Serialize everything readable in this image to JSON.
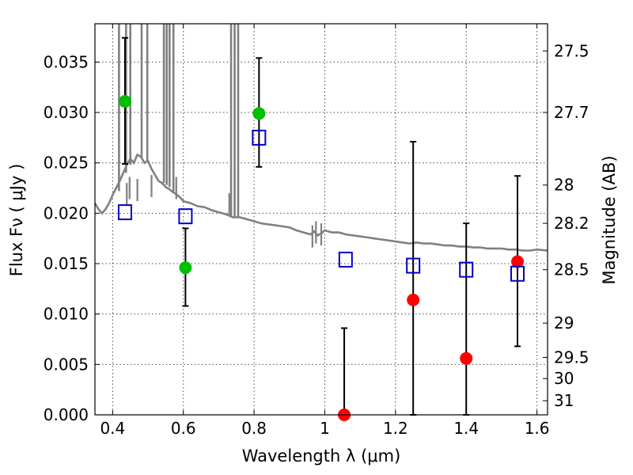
{
  "chart_data": {
    "type": "scatter",
    "xlabel": "Wavelength  λ (μm)",
    "ylabel": "Flux  Fν  ( μJy )",
    "ylabel_right": "Magnitude (AB)",
    "xlim": [
      0.35,
      1.63
    ],
    "ylim": [
      0.0,
      0.0388
    ],
    "grid": true,
    "x_ticks": [
      0.4,
      0.6,
      0.8,
      1.0,
      1.2,
      1.4,
      1.6
    ],
    "x_tick_labels": [
      "0.4",
      "0.6",
      "0.8",
      "1",
      "1.2",
      "1.4",
      "1.6"
    ],
    "y_ticks": [
      0.0,
      0.005,
      0.01,
      0.015,
      0.02,
      0.025,
      0.03,
      0.035
    ],
    "y_tick_labels": [
      "0.000",
      "0.005",
      "0.010",
      "0.015",
      "0.020",
      "0.025",
      "0.030",
      "0.035"
    ],
    "right_ticks": [
      {
        "label": "27.5",
        "flux": 0.0361
      },
      {
        "label": "27.7",
        "flux": 0.03
      },
      {
        "label": "28",
        "flux": 0.0228
      },
      {
        "label": "28.2",
        "flux": 0.019
      },
      {
        "label": "28.5",
        "flux": 0.0144
      },
      {
        "label": "29",
        "flux": 0.0091
      },
      {
        "label": "29.5",
        "flux": 0.0057
      },
      {
        "label": "30",
        "flux": 0.0036
      },
      {
        "label": "31",
        "flux": 0.0014
      }
    ],
    "series": [
      {
        "marker": "circle-filled",
        "color": "#00bf00",
        "points": [
          {
            "x": 0.435,
            "y": 0.0311,
            "err_low": 0.0249,
            "err_high": 0.0374
          },
          {
            "x": 0.606,
            "y": 0.0146,
            "err_low": 0.0108,
            "err_high": 0.0185
          },
          {
            "x": 0.814,
            "y": 0.0299,
            "err_low": 0.0246,
            "err_high": 0.0354
          }
        ]
      },
      {
        "marker": "circle-filled",
        "color": "#ff0000",
        "points": [
          {
            "x": 1.055,
            "y": 0.0,
            "err_low": 0.0,
            "err_high": 0.0086
          },
          {
            "x": 1.25,
            "y": 0.0114,
            "err_low": 0.0,
            "err_high": 0.0271
          },
          {
            "x": 1.4,
            "y": 0.0056,
            "err_low": 0.0,
            "err_high": 0.019
          },
          {
            "x": 1.545,
            "y": 0.0152,
            "err_low": 0.0068,
            "err_high": 0.0237
          }
        ]
      },
      {
        "marker": "square-open",
        "color": "#0000cc",
        "points": [
          {
            "x": 0.435,
            "y": 0.0201
          },
          {
            "x": 0.606,
            "y": 0.0197
          },
          {
            "x": 0.814,
            "y": 0.0275
          },
          {
            "x": 1.059,
            "y": 0.0154
          },
          {
            "x": 1.25,
            "y": 0.0148
          },
          {
            "x": 1.4,
            "y": 0.0144
          },
          {
            "x": 1.545,
            "y": 0.014
          }
        ]
      },
      {
        "marker": "line",
        "color": "#808080",
        "points": [
          [
            0.35,
            0.021
          ],
          [
            0.36,
            0.0204
          ],
          [
            0.37,
            0.02
          ],
          [
            0.38,
            0.0204
          ],
          [
            0.39,
            0.021
          ],
          [
            0.4,
            0.0218
          ],
          [
            0.41,
            0.0225
          ],
          [
            0.42,
            0.0232
          ],
          [
            0.43,
            0.024
          ],
          [
            0.44,
            0.0248
          ],
          [
            0.45,
            0.0254
          ],
          [
            0.46,
            0.025
          ],
          [
            0.47,
            0.0258
          ],
          [
            0.48,
            0.0256
          ],
          [
            0.49,
            0.025
          ],
          [
            0.5,
            0.0252
          ],
          [
            0.51,
            0.0244
          ],
          [
            0.52,
            0.0238
          ],
          [
            0.53,
            0.0232
          ],
          [
            0.54,
            0.023
          ],
          [
            0.55,
            0.0226
          ],
          [
            0.56,
            0.0224
          ],
          [
            0.57,
            0.0221
          ],
          [
            0.58,
            0.0219
          ],
          [
            0.59,
            0.0216
          ],
          [
            0.6,
            0.0212
          ],
          [
            0.62,
            0.021
          ],
          [
            0.64,
            0.0207
          ],
          [
            0.66,
            0.0206
          ],
          [
            0.68,
            0.0203
          ],
          [
            0.7,
            0.0201
          ],
          [
            0.72,
            0.0199
          ],
          [
            0.74,
            0.0196
          ],
          [
            0.76,
            0.0196
          ],
          [
            0.78,
            0.0194
          ],
          [
            0.8,
            0.0192
          ],
          [
            0.82,
            0.019
          ],
          [
            0.84,
            0.0189
          ],
          [
            0.86,
            0.0188
          ],
          [
            0.88,
            0.0187
          ],
          [
            0.9,
            0.0186
          ],
          [
            0.92,
            0.0183
          ],
          [
            0.94,
            0.0181
          ],
          [
            0.96,
            0.0179
          ],
          [
            0.97,
            0.0182
          ],
          [
            0.98,
            0.0178
          ],
          [
            0.99,
            0.018
          ],
          [
            1.0,
            0.0183
          ],
          [
            1.02,
            0.0181
          ],
          [
            1.04,
            0.0181
          ],
          [
            1.06,
            0.0179
          ],
          [
            1.08,
            0.0178
          ],
          [
            1.1,
            0.0177
          ],
          [
            1.12,
            0.0176
          ],
          [
            1.14,
            0.0175
          ],
          [
            1.16,
            0.0174
          ],
          [
            1.18,
            0.0173
          ],
          [
            1.2,
            0.0172
          ],
          [
            1.22,
            0.0171
          ],
          [
            1.24,
            0.017
          ],
          [
            1.26,
            0.0171
          ],
          [
            1.28,
            0.017
          ],
          [
            1.3,
            0.017
          ],
          [
            1.32,
            0.0169
          ],
          [
            1.34,
            0.0168
          ],
          [
            1.36,
            0.0168
          ],
          [
            1.38,
            0.0167
          ],
          [
            1.4,
            0.0167
          ],
          [
            1.42,
            0.0166
          ],
          [
            1.44,
            0.0166
          ],
          [
            1.46,
            0.0165
          ],
          [
            1.48,
            0.0165
          ],
          [
            1.5,
            0.0165
          ],
          [
            1.52,
            0.0164
          ],
          [
            1.54,
            0.0164
          ],
          [
            1.56,
            0.0163
          ],
          [
            1.58,
            0.0163
          ],
          [
            1.6,
            0.0164
          ],
          [
            1.63,
            0.0163
          ]
        ],
        "spikes": [
          {
            "x": 0.418,
            "y_top": 0.0388,
            "y_base": 0.0222
          },
          {
            "x": 0.438,
            "y_top": 0.0388,
            "y_base": 0.024
          },
          {
            "x": 0.45,
            "y_top": 0.0388,
            "y_base": 0.0248
          },
          {
            "x": 0.482,
            "y_top": 0.0388,
            "y_base": 0.0255
          },
          {
            "x": 0.498,
            "y_top": 0.0388,
            "y_base": 0.0252
          },
          {
            "x": 0.545,
            "y_top": 0.0388,
            "y_base": 0.023
          },
          {
            "x": 0.553,
            "y_top": 0.0388,
            "y_base": 0.0228
          },
          {
            "x": 0.561,
            "y_top": 0.0388,
            "y_base": 0.0226
          },
          {
            "x": 0.572,
            "y_top": 0.0388,
            "y_base": 0.0221
          },
          {
            "x": 0.735,
            "y_top": 0.0388,
            "y_base": 0.0197
          },
          {
            "x": 0.745,
            "y_top": 0.0388,
            "y_base": 0.0196
          },
          {
            "x": 0.755,
            "y_top": 0.0388,
            "y_base": 0.0196
          }
        ],
        "dips": [
          {
            "x": 0.44,
            "y": 0.0208
          },
          {
            "x": 0.448,
            "y": 0.0214
          },
          {
            "x": 0.47,
            "y": 0.0212
          },
          {
            "x": 0.51,
            "y": 0.0216
          },
          {
            "x": 0.58,
            "y": 0.0214
          },
          {
            "x": 0.73,
            "y": 0.0198
          },
          {
            "x": 0.965,
            "y": 0.0166
          },
          {
            "x": 0.975,
            "y": 0.017
          },
          {
            "x": 0.99,
            "y": 0.0168
          }
        ]
      }
    ]
  }
}
